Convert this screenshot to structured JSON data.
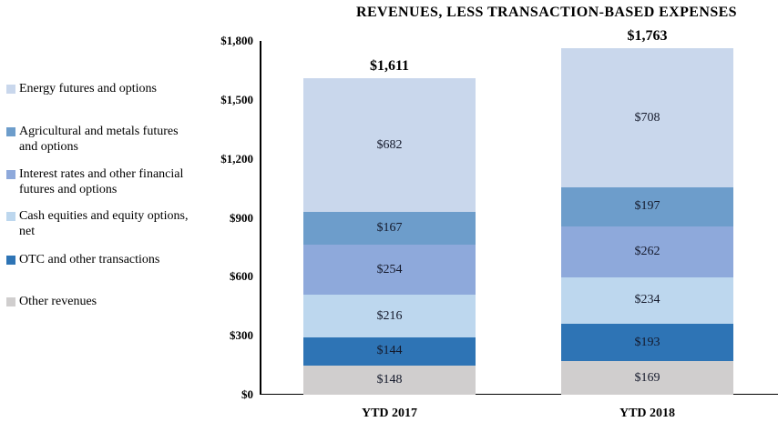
{
  "title": "REVENUES, LESS TRANSACTION-BASED EXPENSES",
  "legend": {
    "items": [
      {
        "label": "Energy futures and options",
        "color": "#c9d7ec"
      },
      {
        "label": "Agricultural and metals futures\nand options",
        "color": "#6d9dcb"
      },
      {
        "label": "Interest rates and other financial\nfutures and options",
        "color": "#8ea9db"
      },
      {
        "label": "Cash equities and equity options,\nnet",
        "color": "#bdd7ee"
      },
      {
        "label": "OTC and other transactions",
        "color": "#2e74b5"
      },
      {
        "label": "Other revenues",
        "color": "#d0cece"
      }
    ]
  },
  "chart_data": {
    "type": "bar",
    "subtype": "stacked",
    "title": "REVENUES, LESS TRANSACTION-BASED EXPENSES",
    "categories": [
      "YTD 2017",
      "YTD 2018"
    ],
    "series": [
      {
        "name": "Other revenues",
        "color": "#d0cece",
        "values": [
          148,
          169
        ]
      },
      {
        "name": "OTC and other transactions",
        "color": "#2e74b5",
        "values": [
          144,
          193
        ]
      },
      {
        "name": "Cash equities and equity options, net",
        "color": "#bdd7ee",
        "values": [
          216,
          234
        ]
      },
      {
        "name": "Interest rates and other financial futures and options",
        "color": "#8ea9db",
        "values": [
          254,
          262
        ]
      },
      {
        "name": "Agricultural and metals futures and options",
        "color": "#6d9dcb",
        "values": [
          167,
          197
        ]
      },
      {
        "name": "Energy futures and options",
        "color": "#c9d7ec",
        "values": [
          682,
          708
        ]
      }
    ],
    "totals": [
      1611,
      1763
    ],
    "total_labels": [
      "$1,611",
      "$1,763"
    ],
    "segment_labels": [
      [
        "$148",
        "$144",
        "$216",
        "$254",
        "$167",
        "$682"
      ],
      [
        "$169",
        "$193",
        "$234",
        "$262",
        "$197",
        "$708"
      ]
    ],
    "y_ticks": [
      "$1,800",
      "$1,500",
      "$1,200",
      "$900",
      "$600",
      "$300",
      "$0"
    ],
    "y_tick_values": [
      1800,
      1500,
      1200,
      900,
      600,
      300,
      0
    ],
    "ylim": [
      0,
      1800
    ],
    "unit_prefix": "$",
    "legend_position": "left",
    "grid": false
  }
}
